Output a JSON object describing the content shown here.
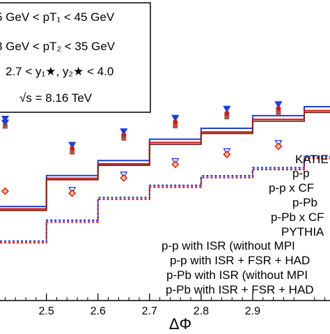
{
  "chart_data": {
    "type": "step",
    "xlabel": "ΔΦ",
    "xlim": [
      2.41,
      3.05
    ],
    "ylim": [
      0,
      100
    ],
    "x_ticks": [
      2.5,
      2.6,
      2.7,
      2.8,
      2.9
    ],
    "x_tick_labels": [
      "2.5",
      "2.6",
      "2.7",
      "2.8",
      "2.9"
    ],
    "info_box": {
      "line1": "5 GeV < pT₁ < 45 GeV",
      "line2": "3 GeV < pT₂ < 35 GeV",
      "line3": "2.7 < y₁★, y₂★ < 4.0",
      "line4": "√s = 8.16 TeV"
    },
    "legend_labels": [
      "KATIE",
      "p-p",
      "p-p x CF",
      "p-Pb",
      "p-Pb x CF",
      "PYTHIA",
      "p-p with ISR (without MPI",
      "p-p with ISR + FSR + HAD",
      "p-Pb with ISR (without MPI",
      "p-Pb with ISR + FSR + HAD"
    ],
    "step_edges": [
      2.41,
      2.5,
      2.6,
      2.7,
      2.8,
      2.9,
      3.0,
      3.05
    ],
    "series": [
      {
        "values": [
          31.3,
          41.6,
          46.6,
          53.7,
          57.3,
          61.5,
          64.5
        ],
        "color": "#1f3fd8",
        "style": "solid"
      },
      {
        "values": [
          30.5,
          40.7,
          45.5,
          52.6,
          56.1,
          60.3,
          63.2
        ],
        "color": "#d01818",
        "style": "solid"
      },
      {
        "values": [
          30.0,
          40.2,
          45.0,
          52.0,
          55.6,
          59.7,
          62.6
        ],
        "color": "#7a2a1a",
        "style": "solid"
      },
      {
        "values": [
          19.8,
          26.7,
          34.3,
          38.3,
          41.5,
          44.2,
          47.9
        ],
        "color": "#1f3fd8",
        "style": "dashed"
      },
      {
        "values": [
          19.2,
          26.1,
          33.7,
          37.7,
          40.9,
          43.6,
          47.3
        ],
        "color": "#d01818",
        "style": "dashed"
      }
    ],
    "markers": [
      {
        "x": [
          2.55,
          2.65,
          2.75,
          2.85,
          2.95
        ],
        "y": [
          51.8,
          56.3,
          60.8,
          63.8,
          65.3
        ],
        "color": "#1f3fd8",
        "shape": "triangle-down"
      },
      {
        "x": [
          2.55,
          2.65,
          2.75,
          2.85,
          2.95
        ],
        "y": [
          50.6,
          55.1,
          59.4,
          62.3,
          63.9
        ],
        "color": "#d01818",
        "shape": "circle"
      },
      {
        "x": [
          2.55,
          2.65,
          2.75,
          2.85,
          2.95
        ],
        "y": [
          49.4,
          54.0,
          58.1,
          61.1,
          62.6
        ],
        "color": "#9a3a28",
        "shape": "square"
      },
      {
        "x": [
          2.55,
          2.65,
          2.75,
          2.85,
          2.95
        ],
        "y": [
          36.8,
          41.9,
          46.4,
          49.7,
          52.4
        ],
        "color": "#1f3fd8",
        "shape": "triangle-down-open"
      },
      {
        "x": [
          2.55,
          2.65,
          2.75,
          2.85,
          2.95
        ],
        "y": [
          35.7,
          40.8,
          45.3,
          48.6,
          51.3
        ],
        "color": "#d01818",
        "shape": "diamond"
      },
      {
        "x": [
          2.42,
          2.42
        ],
        "y": [
          60.5,
          59.2
        ],
        "color": "#1f3fd8",
        "shape": "triangle-down"
      },
      {
        "x": [
          2.42
        ],
        "y": [
          58.0
        ],
        "color": "#9a3a28",
        "shape": "square"
      },
      {
        "x": [
          2.42
        ],
        "y": [
          36.4
        ],
        "color": "#d01818",
        "shape": "diamond"
      }
    ]
  }
}
